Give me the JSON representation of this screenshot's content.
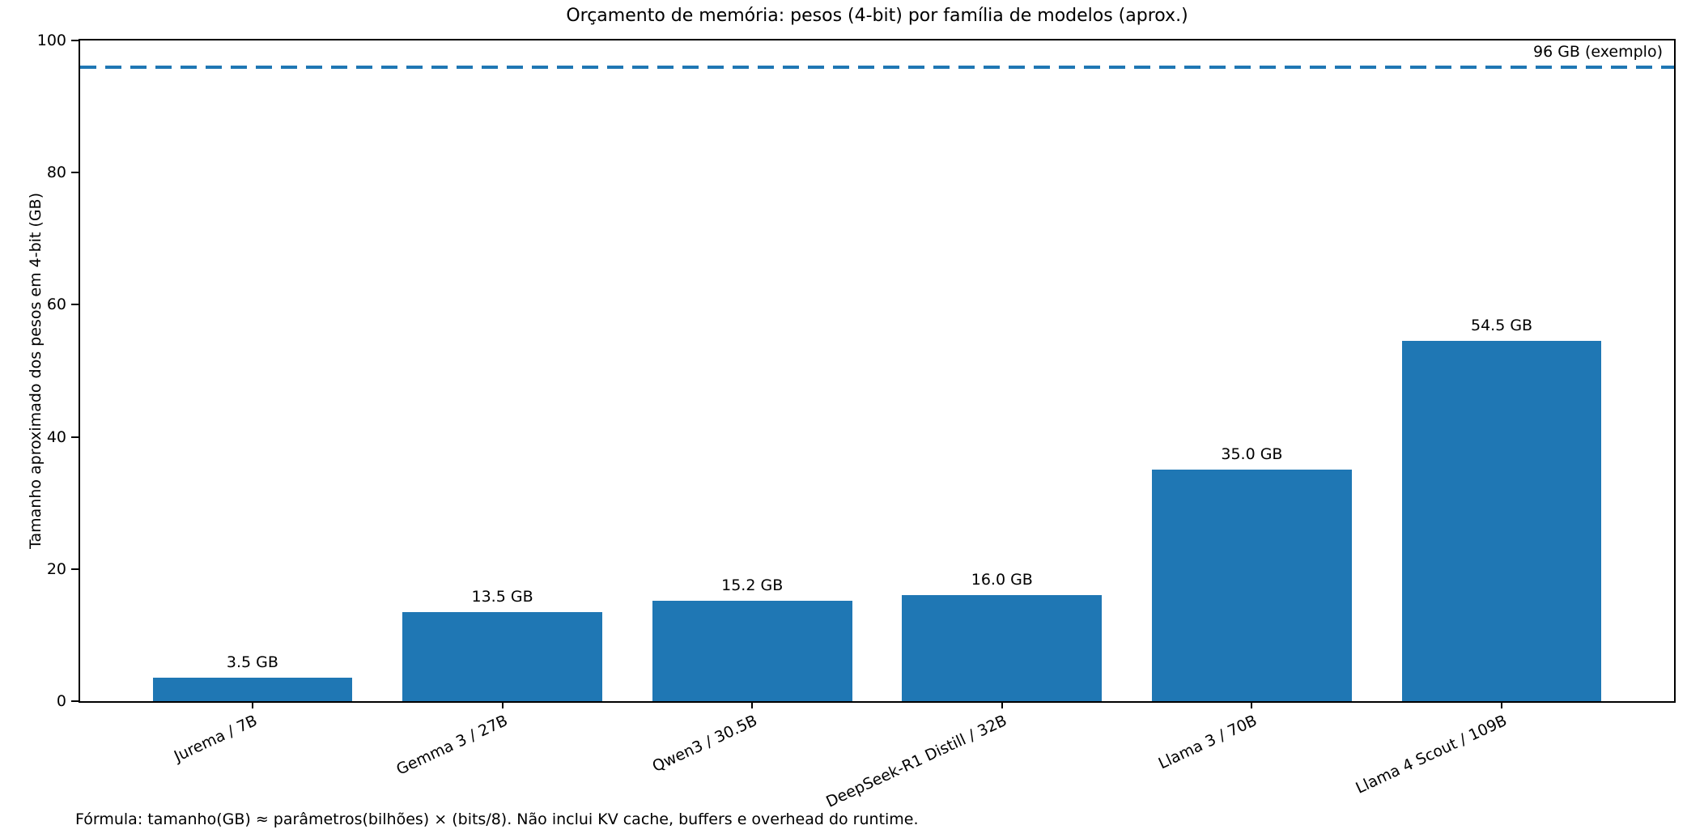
{
  "chart_data": {
    "type": "bar",
    "title": "Orçamento de memória: pesos (4-bit) por família de modelos (aprox.)",
    "xlabel": "",
    "ylabel": "Tamanho aproximado dos pesos em 4-bit (GB)",
    "categories": [
      "Jurema / 7B",
      "Gemma 3 / 27B",
      "Qwen3 / 30.5B",
      "DeepSeek-R1 Distill / 32B",
      "Llama 3 / 70B",
      "Llama 4 Scout / 109B"
    ],
    "values": [
      3.5,
      13.5,
      15.2,
      16.0,
      35.0,
      54.5
    ],
    "bar_labels": [
      "3.5 GB",
      "13.5 GB",
      "15.2 GB",
      "16.0 GB",
      "35.0 GB",
      "54.5 GB"
    ],
    "ylim": [
      0,
      100
    ],
    "yticks": [
      0,
      20,
      40,
      60,
      80,
      100
    ],
    "bar_color": "#1f77b4",
    "reference_line": {
      "value": 96,
      "label": "96 GB (exemplo)",
      "color": "#1f77b4",
      "style": "dashed"
    },
    "footnote": "Fórmula: tamanho(GB) ≈ parâmetros(bilhões) × (bits/8). Não inclui KV cache, buffers e overhead do runtime.",
    "grid": false,
    "legend_position": "none",
    "x_tick_rotation_deg": 25
  }
}
